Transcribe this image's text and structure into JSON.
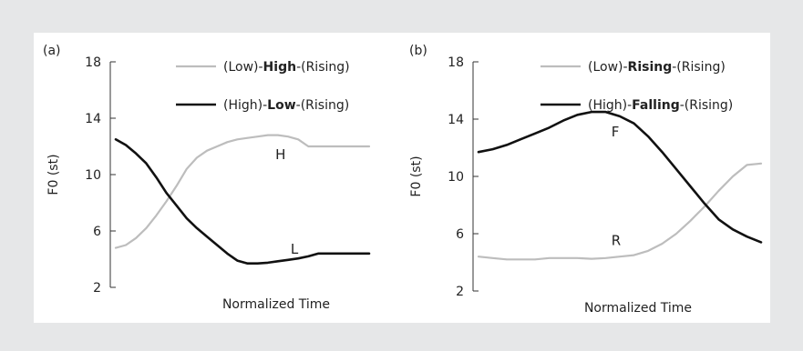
{
  "chart_data": [
    {
      "type": "line",
      "panel_label": "(a)",
      "title": "",
      "xlabel": "Normalized Time",
      "ylabel": "F0 (st)",
      "ylim": [
        2,
        18
      ],
      "yticks": [
        2,
        6,
        10,
        14,
        18
      ],
      "x_ticks_shown": false,
      "grid": false,
      "legend_position": "top-right",
      "series": [
        {
          "name_parts": [
            {
              "text": "(Low)-",
              "bold": false
            },
            {
              "text": "High",
              "bold": true
            },
            {
              "text": "-(Rising)",
              "bold": false
            }
          ],
          "color": "#bdbdbd",
          "x": [
            0,
            0.04,
            0.08,
            0.12,
            0.16,
            0.2,
            0.24,
            0.28,
            0.32,
            0.36,
            0.4,
            0.44,
            0.48,
            0.52,
            0.56,
            0.6,
            0.64,
            0.68,
            0.72,
            0.76,
            0.8,
            0.84,
            0.88,
            0.92,
            0.96,
            1.0
          ],
          "values": [
            4.8,
            5.0,
            5.5,
            6.2,
            7.1,
            8.1,
            9.2,
            10.4,
            11.2,
            11.7,
            12.0,
            12.3,
            12.5,
            12.6,
            12.7,
            12.8,
            12.8,
            12.7,
            12.5,
            12.0,
            12.0,
            12.0,
            12.0,
            12.0,
            12.0,
            12.0
          ],
          "curve_label": "H",
          "curve_label_at": {
            "x": 0.63,
            "y": 11.1
          }
        },
        {
          "name_parts": [
            {
              "text": "(High)-",
              "bold": false
            },
            {
              "text": "Low",
              "bold": true
            },
            {
              "text": "-(Rising)",
              "bold": false
            }
          ],
          "color": "#111111",
          "x": [
            0,
            0.04,
            0.08,
            0.12,
            0.16,
            0.2,
            0.24,
            0.28,
            0.32,
            0.36,
            0.4,
            0.44,
            0.48,
            0.52,
            0.56,
            0.6,
            0.64,
            0.68,
            0.72,
            0.76,
            0.8,
            0.84,
            0.88,
            0.92,
            0.96,
            1.0
          ],
          "values": [
            12.5,
            12.1,
            11.5,
            10.8,
            9.8,
            8.7,
            7.8,
            6.9,
            6.2,
            5.6,
            5.0,
            4.4,
            3.9,
            3.7,
            3.7,
            3.75,
            3.85,
            3.95,
            4.05,
            4.2,
            4.4,
            4.4,
            4.4,
            4.4,
            4.4,
            4.4
          ],
          "curve_label": "L",
          "curve_label_at": {
            "x": 0.69,
            "y": 4.4
          }
        }
      ]
    },
    {
      "type": "line",
      "panel_label": "(b)",
      "title": "",
      "xlabel": "Normalized Time",
      "ylabel": "F0 (st)",
      "ylim": [
        2,
        18
      ],
      "yticks": [
        2,
        6,
        10,
        14,
        18
      ],
      "x_ticks_shown": false,
      "grid": false,
      "legend_position": "top-right",
      "series": [
        {
          "name_parts": [
            {
              "text": "(Low)-",
              "bold": false
            },
            {
              "text": "Rising",
              "bold": true
            },
            {
              "text": "-(Rising)",
              "bold": false
            }
          ],
          "color": "#bdbdbd",
          "x": [
            0,
            0.05,
            0.1,
            0.15,
            0.2,
            0.25,
            0.3,
            0.35,
            0.4,
            0.45,
            0.5,
            0.55,
            0.6,
            0.65,
            0.7,
            0.75,
            0.8,
            0.85,
            0.9,
            0.95,
            1.0
          ],
          "values": [
            4.4,
            4.3,
            4.2,
            4.2,
            4.2,
            4.3,
            4.3,
            4.3,
            4.25,
            4.3,
            4.4,
            4.5,
            4.8,
            5.3,
            6.0,
            6.9,
            7.9,
            9.0,
            10.0,
            10.8,
            10.9
          ],
          "curve_label": "R",
          "curve_label_at": {
            "x": 0.47,
            "y": 5.2
          }
        },
        {
          "name_parts": [
            {
              "text": "(High)-",
              "bold": false
            },
            {
              "text": "Falling",
              "bold": true
            },
            {
              "text": "-(Rising)",
              "bold": false
            }
          ],
          "color": "#111111",
          "x": [
            0,
            0.05,
            0.1,
            0.15,
            0.2,
            0.25,
            0.3,
            0.35,
            0.4,
            0.45,
            0.5,
            0.55,
            0.6,
            0.65,
            0.7,
            0.75,
            0.8,
            0.85,
            0.9,
            0.95,
            1.0
          ],
          "values": [
            11.7,
            11.9,
            12.2,
            12.6,
            13.0,
            13.4,
            13.9,
            14.3,
            14.5,
            14.5,
            14.2,
            13.7,
            12.8,
            11.7,
            10.5,
            9.3,
            8.1,
            7.0,
            6.3,
            5.8,
            5.4
          ],
          "curve_label": "F",
          "curve_label_at": {
            "x": 0.47,
            "y": 12.8
          }
        }
      ]
    }
  ]
}
